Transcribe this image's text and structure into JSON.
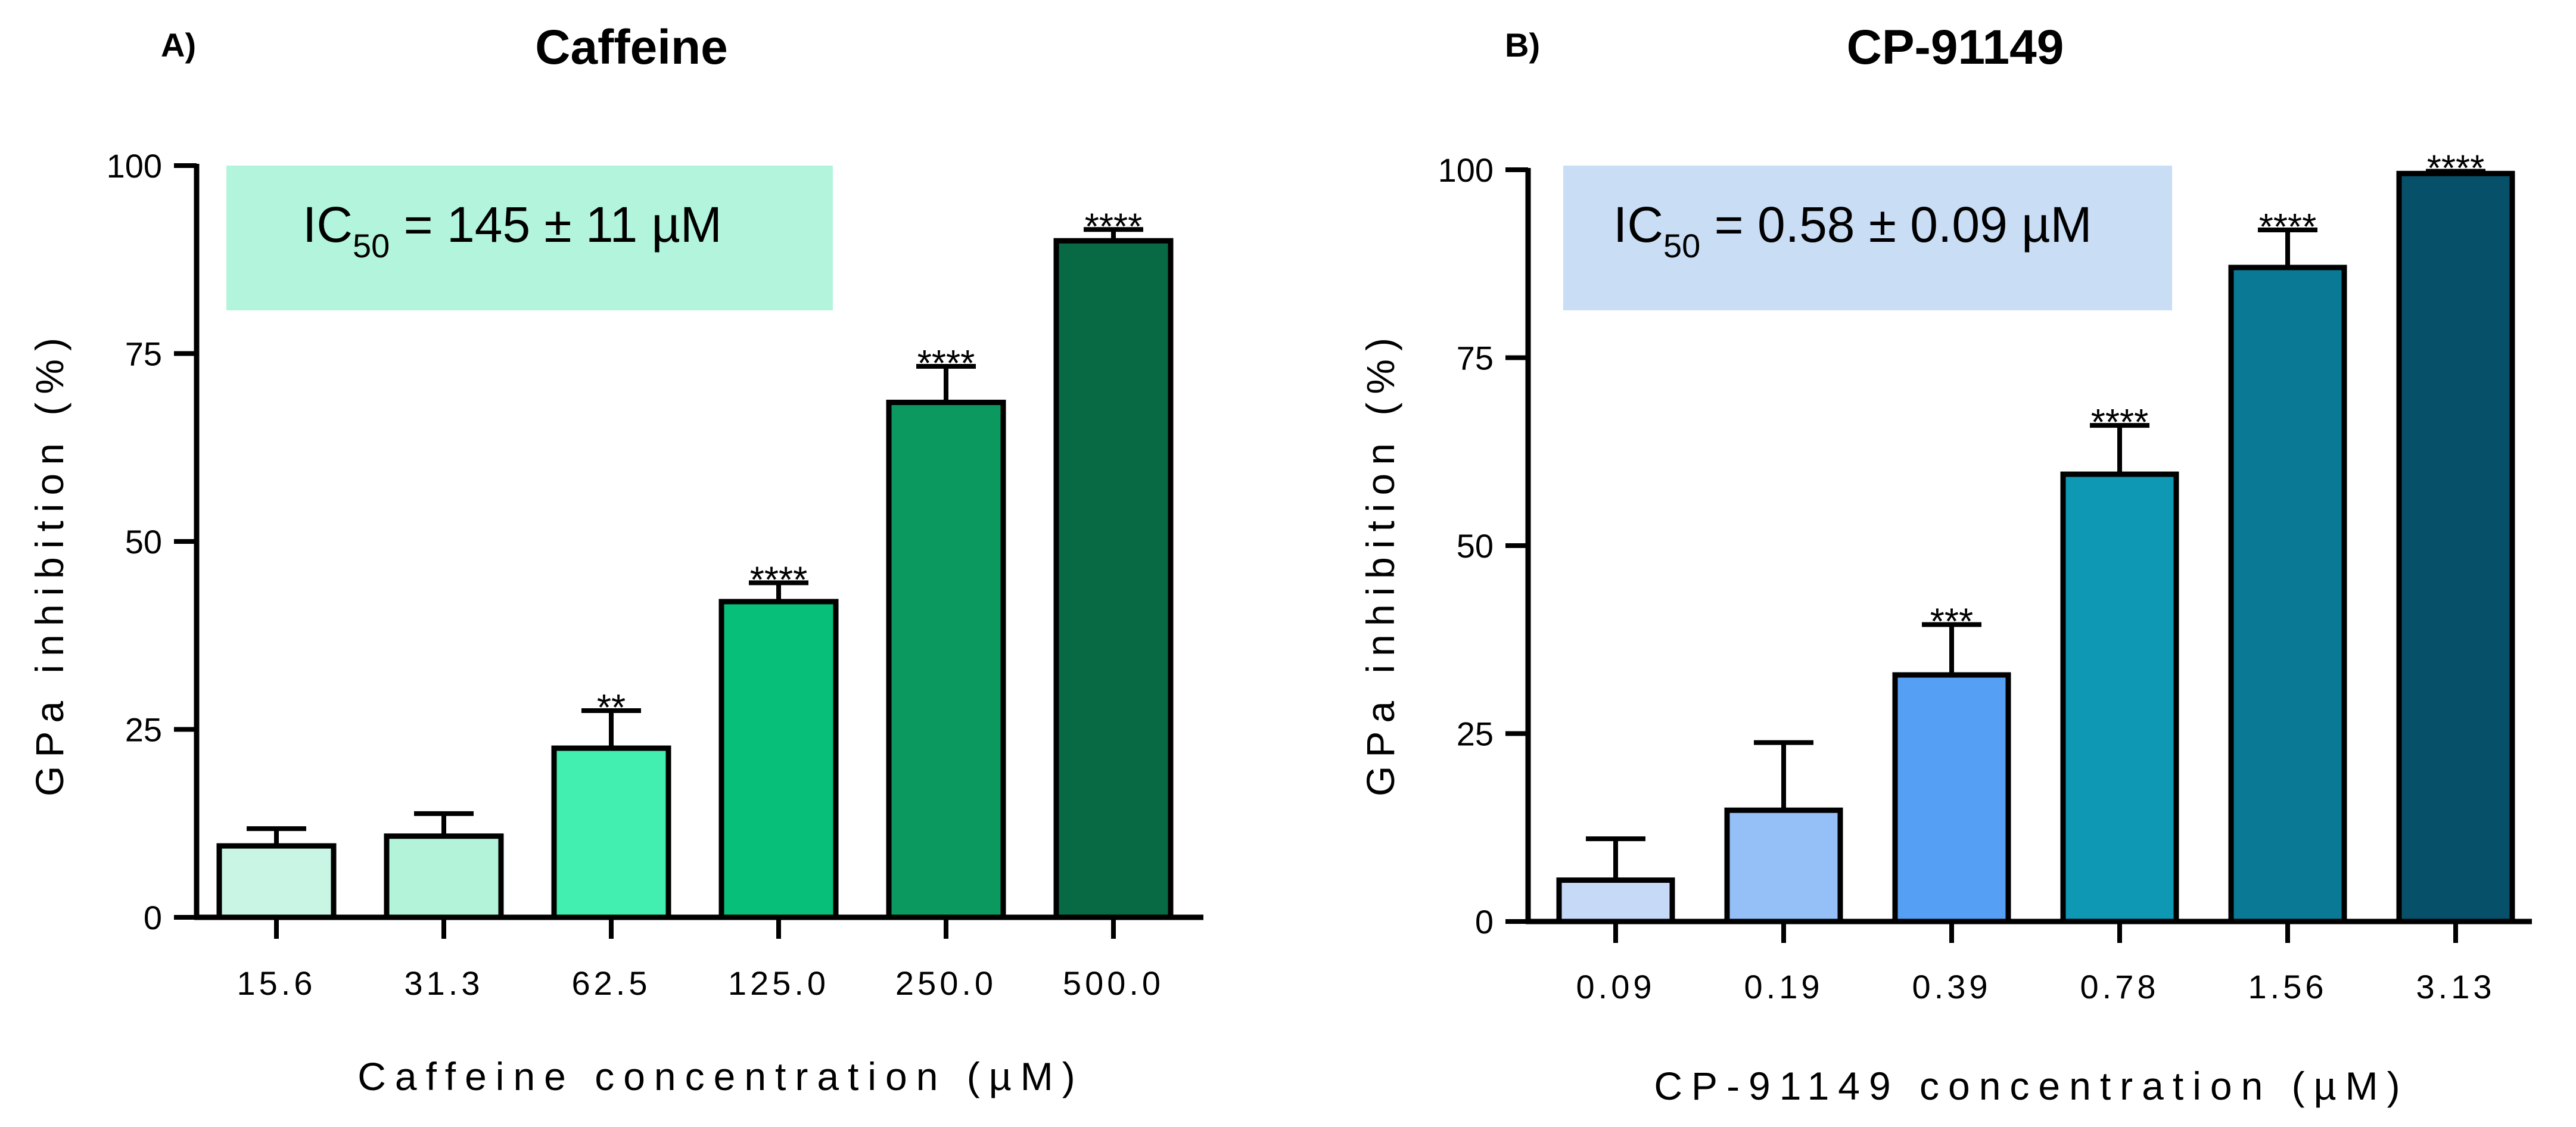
{
  "chart_data": [
    {
      "panel": "A)",
      "type": "bar",
      "title": "Caffeine",
      "xlabel": "Caffeine concentration (µM)",
      "ylabel": "GPa inhibition (%)",
      "ylim": [
        0,
        100
      ],
      "yticks": [
        0,
        25,
        50,
        75,
        100
      ],
      "categories": [
        "15.6",
        "31.3",
        "62.5",
        "125.0",
        "250.0",
        "500.0"
      ],
      "values": [
        9.5,
        10.8,
        22.5,
        42.0,
        68.5,
        90.0
      ],
      "errors": [
        2.3,
        3.0,
        5.0,
        2.5,
        4.8,
        1.5
      ],
      "significance": [
        "",
        "",
        "**",
        "****",
        "****",
        "****"
      ],
      "colors": [
        "#c9f5e4",
        "#b3f3da",
        "#43efb0",
        "#07bf78",
        "#0b9960",
        "#076a44"
      ],
      "annotation": {
        "prefix": "IC",
        "sub": "50",
        "text": " = 145 ± 11 µM",
        "bg": "#b3f5dc"
      }
    },
    {
      "panel": "B)",
      "type": "bar",
      "title": "CP-91149",
      "xlabel": "CP-91149 concentration (µM)",
      "ylabel": "GPa inhibition (%)",
      "ylim": [
        0,
        100
      ],
      "yticks": [
        0,
        25,
        50,
        75,
        100
      ],
      "categories": [
        "0.09",
        "0.19",
        "0.39",
        "0.78",
        "1.56",
        "3.13"
      ],
      "values": [
        5.5,
        14.8,
        32.8,
        59.5,
        87.0,
        99.5
      ],
      "errors": [
        5.5,
        9.0,
        6.7,
        6.5,
        5.0,
        0.3
      ],
      "significance": [
        "",
        "",
        "***",
        "****",
        "****",
        "****"
      ],
      "colors": [
        "#c6daf7",
        "#94c0f7",
        "#559ff5",
        "#0e98b4",
        "#0a7995",
        "#07506a"
      ],
      "annotation": {
        "prefix": "IC",
        "sub": "50",
        "text": " = 0.58 ± 0.09 µM",
        "bg": "#c9ddf5"
      }
    }
  ]
}
